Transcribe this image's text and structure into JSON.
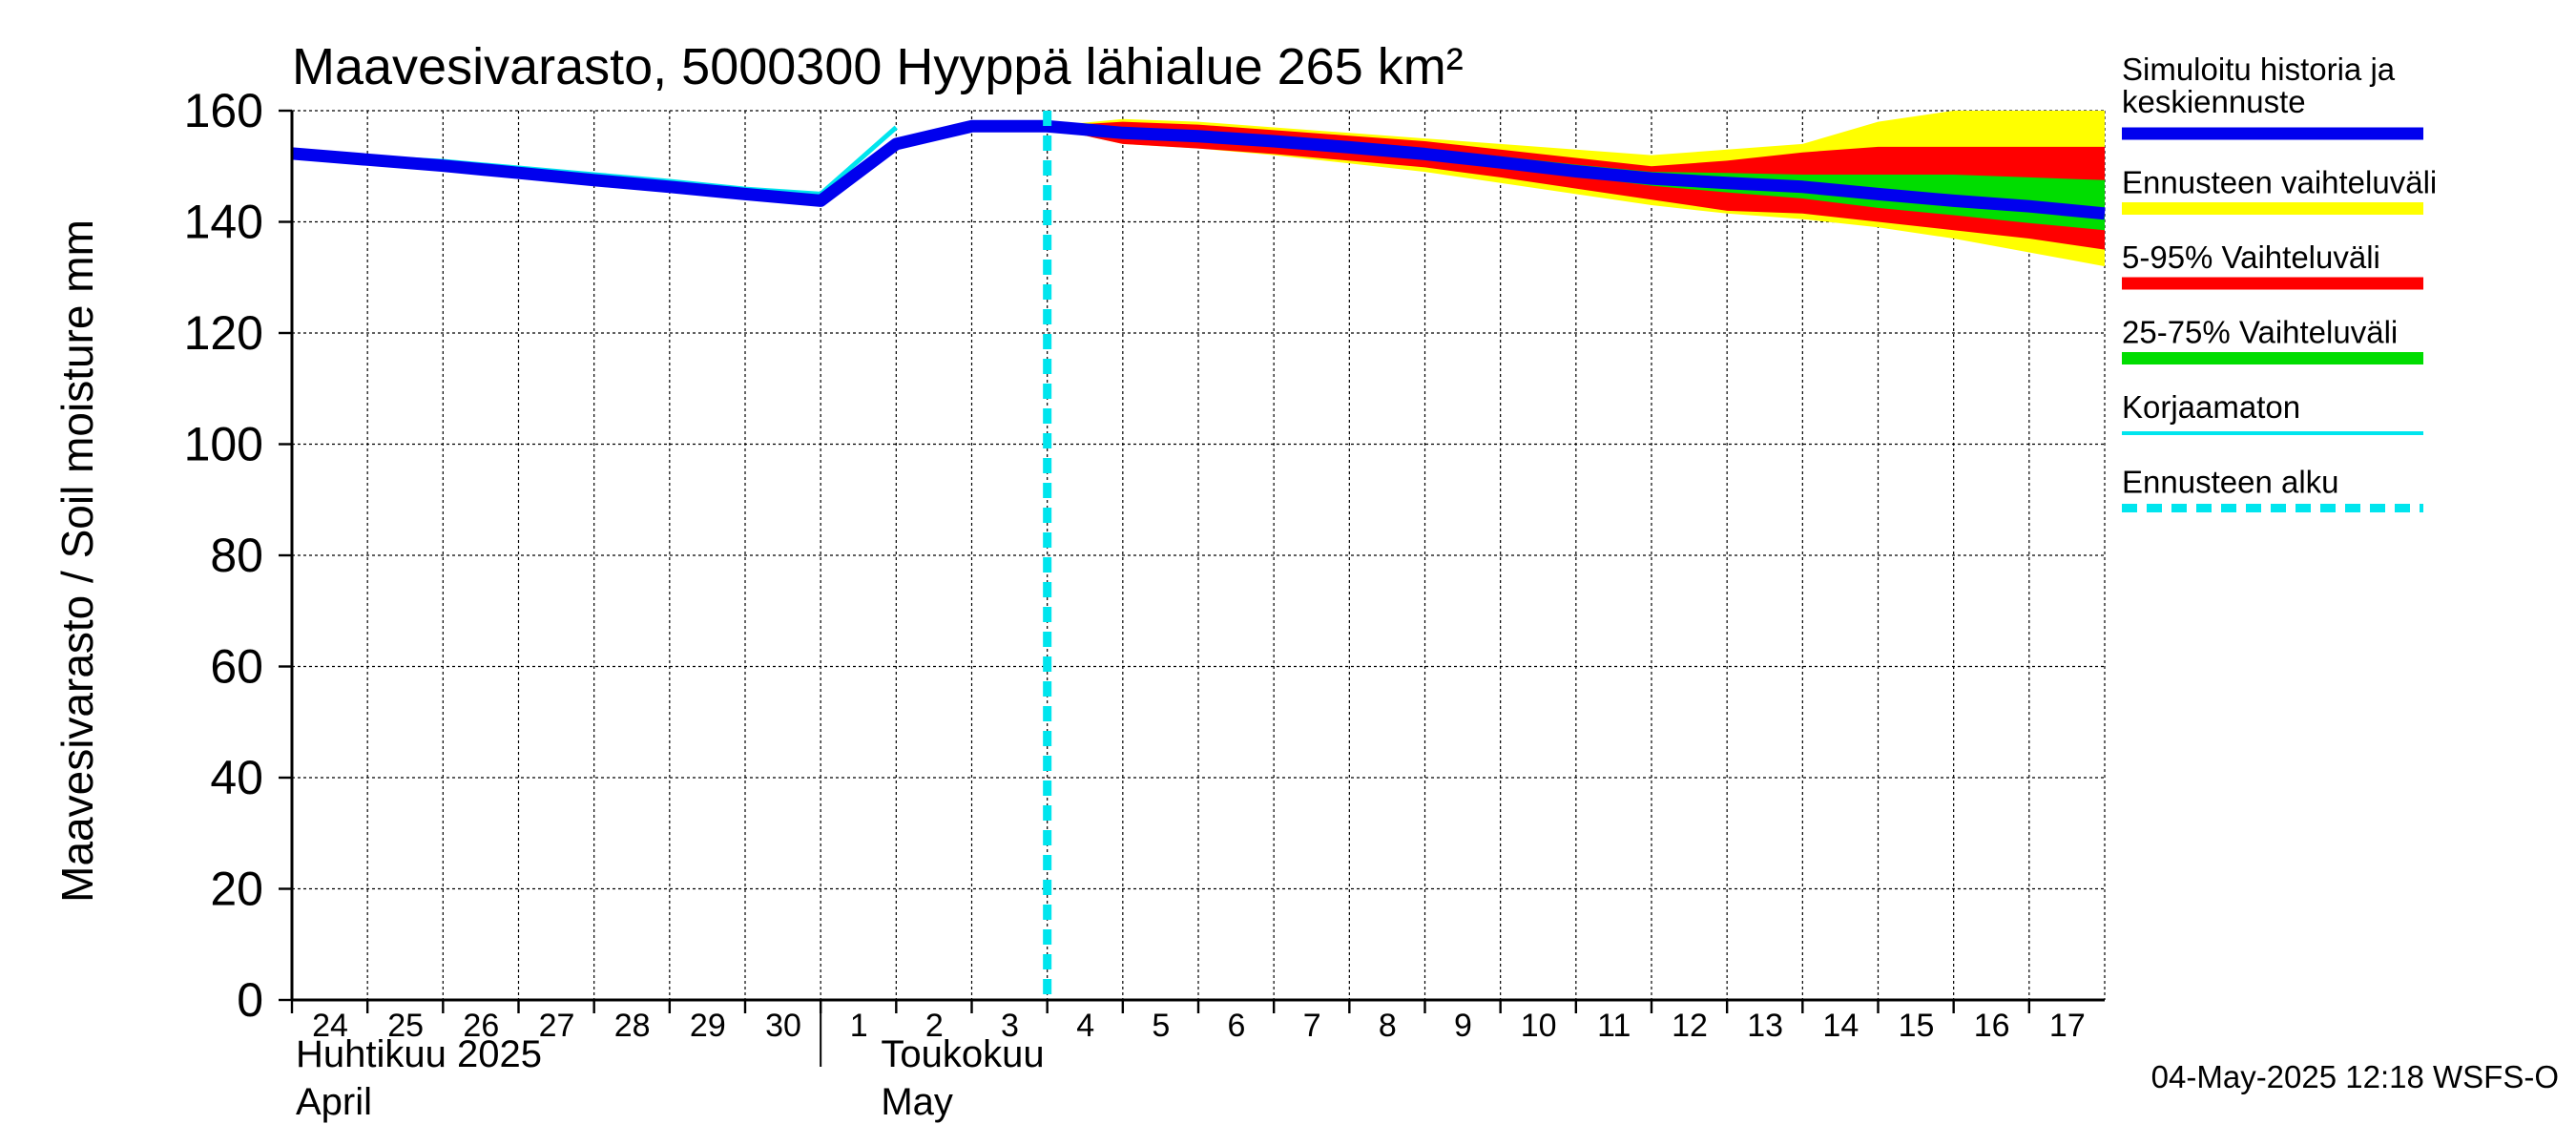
{
  "chart_data": {
    "type": "area",
    "title": "Maavesivarasto, 5000300 Hyyppä lähialue 265 km²",
    "ylabel": "Maavesivarasto / Soil moisture   mm",
    "ylim": [
      0,
      160
    ],
    "yticks": [
      0,
      20,
      40,
      60,
      80,
      100,
      120,
      140,
      160
    ],
    "grid": true,
    "legend_position": "right",
    "xlim": [
      "2025-04-24",
      "2025-05-18"
    ],
    "x_tick_labels": [
      {
        "date": "2025-04-24",
        "label": "24"
      },
      {
        "date": "2025-04-25",
        "label": "25"
      },
      {
        "date": "2025-04-26",
        "label": "26"
      },
      {
        "date": "2025-04-27",
        "label": "27"
      },
      {
        "date": "2025-04-28",
        "label": "28"
      },
      {
        "date": "2025-04-29",
        "label": "29"
      },
      {
        "date": "2025-04-30",
        "label": "30"
      },
      {
        "date": "2025-05-01",
        "label": "1"
      },
      {
        "date": "2025-05-02",
        "label": "2"
      },
      {
        "date": "2025-05-03",
        "label": "3"
      },
      {
        "date": "2025-05-04",
        "label": "4"
      },
      {
        "date": "2025-05-05",
        "label": "5"
      },
      {
        "date": "2025-05-06",
        "label": "6"
      },
      {
        "date": "2025-05-07",
        "label": "7"
      },
      {
        "date": "2025-05-08",
        "label": "8"
      },
      {
        "date": "2025-05-09",
        "label": "9"
      },
      {
        "date": "2025-05-10",
        "label": "10"
      },
      {
        "date": "2025-05-11",
        "label": "11"
      },
      {
        "date": "2025-05-12",
        "label": "12"
      },
      {
        "date": "2025-05-13",
        "label": "13"
      },
      {
        "date": "2025-05-14",
        "label": "14"
      },
      {
        "date": "2025-05-15",
        "label": "15"
      },
      {
        "date": "2025-05-16",
        "label": "16"
      },
      {
        "date": "2025-05-17",
        "label": "17"
      }
    ],
    "month_labels": [
      {
        "date": "2025-04-24",
        "line1": "Huhtikuu  2025",
        "line2": "April"
      },
      {
        "date": "2025-05-02",
        "line1": "Toukokuu",
        "line2": "May"
      }
    ],
    "month_divider": "2025-05-01",
    "forecast_start": "2025-05-04",
    "series": [
      {
        "name": "Ennusteen vaihteluväli",
        "color": "#ffff00",
        "kind": "band",
        "x": [
          "2025-05-04",
          "2025-05-05",
          "2025-05-06",
          "2025-05-07",
          "2025-05-08",
          "2025-05-09",
          "2025-05-10",
          "2025-05-11",
          "2025-05-12",
          "2025-05-13",
          "2025-05-14",
          "2025-05-15",
          "2025-05-16",
          "2025-05-17",
          "2025-05-18"
        ],
        "upper": [
          157.2,
          158.5,
          158,
          157,
          156,
          155,
          154,
          153,
          152,
          153,
          154,
          158,
          160,
          160,
          160
        ],
        "lower": [
          157.0,
          154,
          153.2,
          152,
          150.5,
          149,
          147,
          145,
          143,
          141.5,
          140.5,
          139,
          137,
          134.5,
          132
        ]
      },
      {
        "name": "5-95% Vaihteluväli",
        "color": "#ff0000",
        "kind": "band",
        "x": [
          "2025-05-04",
          "2025-05-05",
          "2025-05-06",
          "2025-05-07",
          "2025-05-08",
          "2025-05-09",
          "2025-05-10",
          "2025-05-11",
          "2025-05-12",
          "2025-05-13",
          "2025-05-14",
          "2025-05-15",
          "2025-05-16",
          "2025-05-17",
          "2025-05-18"
        ],
        "upper": [
          157.2,
          158,
          157.5,
          156.5,
          155.5,
          154.5,
          153,
          151.5,
          150,
          151,
          152.5,
          153.5,
          153.5,
          153.5,
          153.5
        ],
        "lower": [
          157.0,
          154,
          153.2,
          152.2,
          151,
          149.8,
          148,
          146,
          144,
          142,
          141.5,
          140,
          138.5,
          137,
          135
        ]
      },
      {
        "name": "25-75% Vaihteluväli",
        "color": "#00dd00",
        "kind": "band",
        "x": [
          "2025-05-04",
          "2025-05-05",
          "2025-05-06",
          "2025-05-07",
          "2025-05-08",
          "2025-05-09",
          "2025-05-10",
          "2025-05-11",
          "2025-05-12",
          "2025-05-13",
          "2025-05-14",
          "2025-05-15",
          "2025-05-16",
          "2025-05-17",
          "2025-05-18"
        ],
        "upper": [
          157.1,
          156.8,
          156.2,
          155.3,
          154.3,
          153.2,
          151.8,
          150.3,
          149,
          148.8,
          148.5,
          148.5,
          148.5,
          148,
          147.5
        ],
        "lower": [
          157.0,
          155.2,
          154.6,
          153.6,
          152.5,
          151.3,
          149.8,
          148.2,
          146.5,
          145.3,
          144.2,
          142.5,
          141.2,
          139.8,
          138.5
        ]
      },
      {
        "name": "Korjaamaton",
        "color": "#00e5ee",
        "kind": "line",
        "x": [
          "2025-04-24",
          "2025-04-25",
          "2025-04-26",
          "2025-04-27",
          "2025-04-28",
          "2025-04-29",
          "2025-04-30",
          "2025-05-01",
          "2025-05-02"
        ],
        "y": [
          152.3,
          151.6,
          150.9,
          149.7,
          148.5,
          147.3,
          145.9,
          145.0,
          157.0
        ]
      },
      {
        "name": "Simuloitu historia ja keskiennuste",
        "color": "#0000ee",
        "kind": "line",
        "x": [
          "2025-04-24",
          "2025-04-25",
          "2025-04-26",
          "2025-04-27",
          "2025-04-28",
          "2025-04-29",
          "2025-04-30",
          "2025-05-01",
          "2025-05-02",
          "2025-05-03",
          "2025-05-04",
          "2025-05-05",
          "2025-05-06",
          "2025-05-07",
          "2025-05-08",
          "2025-05-09",
          "2025-05-10",
          "2025-05-11",
          "2025-05-12",
          "2025-05-13",
          "2025-05-14",
          "2025-05-15",
          "2025-05-16",
          "2025-05-17",
          "2025-05-18"
        ],
        "y": [
          152.3,
          151.2,
          150.1,
          148.8,
          147.5,
          146.3,
          145.0,
          143.8,
          154.0,
          157.2,
          157.2,
          156.0,
          155.4,
          154.5,
          153.4,
          152.2,
          150.7,
          149.1,
          147.8,
          147.0,
          146.3,
          145.0,
          143.8,
          142.8,
          141.5
        ]
      }
    ],
    "legend": [
      {
        "label": "Simuloitu historia ja keskiennuste",
        "color": "#0000ee",
        "style": "thick"
      },
      {
        "label": "Ennusteen vaihteluväli",
        "color": "#ffff00",
        "style": "thick"
      },
      {
        "label": "5-95% Vaihteluväli",
        "color": "#ff0000",
        "style": "thick"
      },
      {
        "label": "25-75% Vaihteluväli",
        "color": "#00dd00",
        "style": "thick"
      },
      {
        "label": "Korjaamaton",
        "color": "#00e5ee",
        "style": "thin"
      },
      {
        "label": "Ennusteen alku",
        "color": "#00e5ee",
        "style": "dashed"
      }
    ]
  },
  "footer": "04-May-2025 12:18 WSFS-O"
}
